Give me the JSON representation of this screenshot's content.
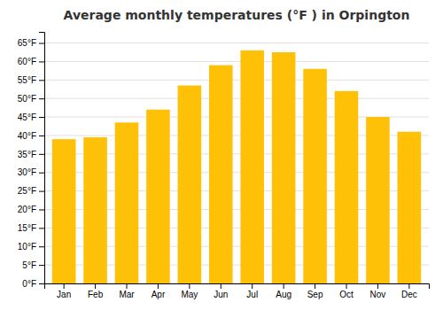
{
  "chart_data": {
    "type": "bar",
    "title": "Average monthly temperatures (°F ) in Orpington",
    "categories": [
      "Jan",
      "Feb",
      "Mar",
      "Apr",
      "May",
      "Jun",
      "Jul",
      "Aug",
      "Sep",
      "Oct",
      "Nov",
      "Dec"
    ],
    "values": [
      39.0,
      39.5,
      43.5,
      47.0,
      53.5,
      59.0,
      63.0,
      62.5,
      58.0,
      52.0,
      45.0,
      41.0
    ],
    "color": "#FFC107",
    "ylim": [
      0,
      68
    ],
    "yticks": [
      {
        "value": 0,
        "label": "0°F"
      },
      {
        "value": 5,
        "label": "5°F"
      },
      {
        "value": 10,
        "label": "10°F"
      },
      {
        "value": 15,
        "label": "15°F"
      },
      {
        "value": 20,
        "label": "20°F"
      },
      {
        "value": 25,
        "label": "25°F"
      },
      {
        "value": 30,
        "label": "30°F"
      },
      {
        "value": 35,
        "label": "35°F"
      },
      {
        "value": 40,
        "label": "40°F"
      },
      {
        "value": 45,
        "label": "45°F"
      },
      {
        "value": 50,
        "label": "50°F"
      },
      {
        "value": 55,
        "label": "55°F"
      },
      {
        "value": 60,
        "label": "60°F"
      },
      {
        "value": 65,
        "label": "65°F"
      }
    ],
    "grid": true
  }
}
